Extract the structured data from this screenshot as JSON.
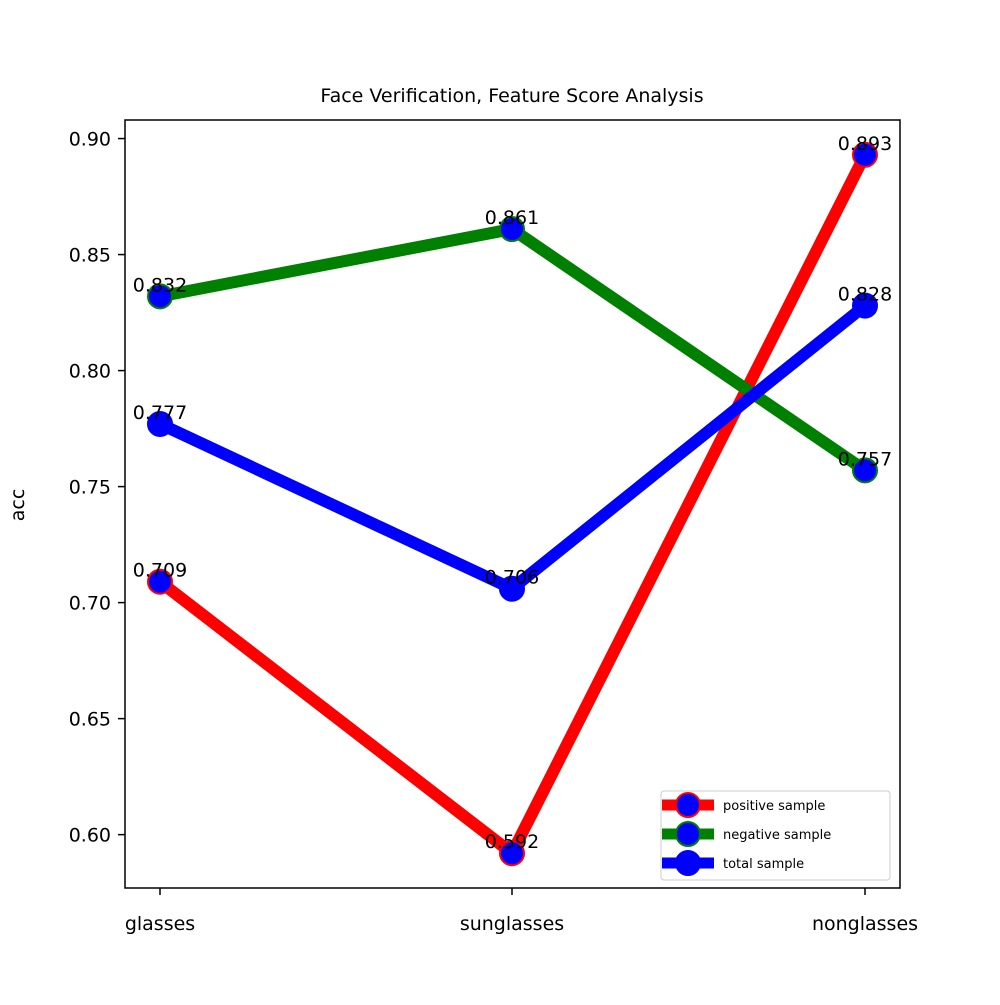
{
  "chart_data": {
    "type": "line",
    "title": "Face Verification, Feature Score Analysis",
    "xlabel": "",
    "ylabel": "acc",
    "categories": [
      "glasses",
      "sunglasses",
      "nonglasses"
    ],
    "ylim": [
      0.577,
      0.908
    ],
    "yticks": [
      0.6,
      0.65,
      0.7,
      0.75,
      0.8,
      0.85,
      0.9
    ],
    "ytick_labels": [
      "0.60",
      "0.65",
      "0.70",
      "0.75",
      "0.80",
      "0.85",
      "0.90"
    ],
    "grid": false,
    "legend_position": "lower-right",
    "series": [
      {
        "name": "positive sample",
        "values": [
          0.709,
          0.592,
          0.893
        ],
        "value_labels": [
          "0.709",
          "0.592",
          "0.893"
        ],
        "line_color": "#ff0000",
        "marker_face": "#0000ff",
        "marker_edge": "#ff0000"
      },
      {
        "name": "negative sample",
        "values": [
          0.832,
          0.861,
          0.757
        ],
        "value_labels": [
          "0.832",
          "0.861",
          "0.757"
        ],
        "line_color": "#008000",
        "marker_face": "#0000ff",
        "marker_edge": "#008000"
      },
      {
        "name": "total sample",
        "values": [
          0.777,
          0.706,
          0.828
        ],
        "value_labels": [
          "0.777",
          "0.706",
          "0.828"
        ],
        "line_color": "#0000ff",
        "marker_face": "#0000ff",
        "marker_edge": "#0000ff"
      }
    ]
  }
}
